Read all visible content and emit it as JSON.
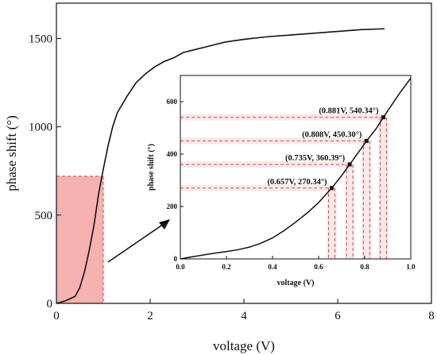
{
  "chart_data": [
    {
      "type": "line",
      "xlabel": "voltage (V)",
      "ylabel": "phase shift (°)",
      "xlim": [
        0,
        8
      ],
      "ylim": [
        0,
        1700
      ],
      "x_ticks": [
        "0",
        "2",
        "4",
        "6",
        "8"
      ],
      "y_ticks": [
        "0",
        "500",
        "1000",
        "1500"
      ],
      "series": [
        {
          "x": [
            0,
            0.2,
            0.4,
            0.5,
            0.6,
            0.7,
            0.8,
            0.9,
            1.0,
            1.1,
            1.2,
            1.3,
            1.5,
            1.7,
            1.9,
            2.1,
            2.3,
            2.5,
            2.7,
            3.0,
            3.3,
            3.6,
            4.0,
            4.5,
            5.0,
            5.5,
            6.0,
            6.5,
            7.0
          ],
          "y": [
            0,
            15,
            40,
            90,
            180,
            300,
            440,
            620,
            760,
            890,
            1000,
            1080,
            1170,
            1250,
            1300,
            1340,
            1370,
            1390,
            1420,
            1440,
            1460,
            1480,
            1495,
            1510,
            1520,
            1530,
            1540,
            1550,
            1555
          ]
        }
      ],
      "highlight_region": {
        "x": [
          0,
          1
        ],
        "y": [
          0,
          720
        ],
        "color": "#f4a3a3"
      },
      "colors": {
        "line": "#111111",
        "highlight": "#f4a3a3",
        "guide": "#c0504d"
      }
    },
    {
      "type": "line",
      "xlabel": "voltage (V)",
      "ylabel": "phase shift (°)",
      "xlim": [
        0,
        1
      ],
      "ylim": [
        0,
        700
      ],
      "x_ticks": [
        "0.0",
        "0.2",
        "0.4",
        "0.6",
        "0.8",
        "1.0"
      ],
      "y_ticks": [
        "0",
        "200",
        "400",
        "600"
      ],
      "series": [
        {
          "x": [
            0,
            0.05,
            0.1,
            0.15,
            0.2,
            0.25,
            0.3,
            0.35,
            0.4,
            0.45,
            0.5,
            0.55,
            0.6,
            0.657,
            0.7,
            0.735,
            0.8,
            0.808,
            0.85,
            0.881,
            0.95,
            1.0
          ],
          "y": [
            0,
            8,
            15,
            22,
            28,
            35,
            45,
            60,
            80,
            108,
            140,
            175,
            215,
            270.34,
            318,
            360.39,
            440,
            450.3,
            497,
            540.34,
            630,
            690
          ]
        }
      ],
      "points": [
        {
          "x": 0.657,
          "y": 270.34,
          "label": "(0.657V,  270.34°)"
        },
        {
          "x": 0.735,
          "y": 360.39,
          "label": "(0.735V,  360.39°)"
        },
        {
          "x": 0.808,
          "y": 450.3,
          "label": "(0.808V,  450.30°)"
        },
        {
          "x": 0.881,
          "y": 540.34,
          "label": "(0.881V,  540.34°)"
        }
      ],
      "colors": {
        "line": "#111111",
        "guide": "#c0504d",
        "band": "#f7d6d6"
      }
    }
  ]
}
